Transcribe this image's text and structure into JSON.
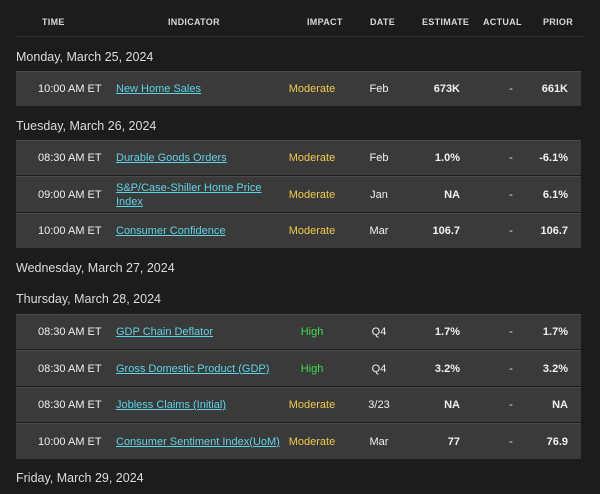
{
  "header": {
    "time": "TIME",
    "indicator": "INDICATOR",
    "impact": "IMPACT",
    "date": "DATE",
    "estimate": "ESTIMATE",
    "actual": "ACTUAL",
    "prior": "PRIOR"
  },
  "days": [
    {
      "label": "Monday, March 25, 2024",
      "events": [
        {
          "time": "10:00 AM ET",
          "indicator": "New Home Sales",
          "impact": "Moderate",
          "date": "Feb",
          "estimate": "673K",
          "actual": "-",
          "prior": "661K"
        }
      ]
    },
    {
      "label": "Tuesday, March 26, 2024",
      "events": [
        {
          "time": "08:30 AM ET",
          "indicator": "Durable Goods Orders",
          "impact": "Moderate",
          "date": "Feb",
          "estimate": "1.0%",
          "actual": "-",
          "prior": "-6.1%"
        },
        {
          "time": "09:00 AM ET",
          "indicator": "S&P/Case-Shiller Home Price Index",
          "impact": "Moderate",
          "date": "Jan",
          "estimate": "NA",
          "actual": "-",
          "prior": "6.1%"
        },
        {
          "time": "10:00 AM ET",
          "indicator": "Consumer Confidence",
          "impact": "Moderate",
          "date": "Mar",
          "estimate": "106.7",
          "actual": "-",
          "prior": "106.7"
        }
      ]
    },
    {
      "label": "Wednesday, March 27, 2024",
      "events": []
    },
    {
      "label": "Thursday, March 28, 2024",
      "events": [
        {
          "time": "08:30 AM ET",
          "indicator": "GDP Chain Deflator",
          "impact": "High",
          "date": "Q4",
          "estimate": "1.7%",
          "actual": "-",
          "prior": "1.7%"
        },
        {
          "time": "08:30 AM ET",
          "indicator": "Gross Domestic Product (GDP)",
          "impact": "High",
          "date": "Q4",
          "estimate": "3.2%",
          "actual": "-",
          "prior": "3.2%"
        },
        {
          "time": "08:30 AM ET",
          "indicator": "Jobless Claims (Initial)",
          "impact": "Moderate",
          "date": "3/23",
          "estimate": "NA",
          "actual": "-",
          "prior": "NA"
        },
        {
          "time": "10:00 AM ET",
          "indicator": "Consumer Sentiment Index(UoM)",
          "impact": "Moderate",
          "date": "Mar",
          "estimate": "77",
          "actual": "-",
          "prior": "76.9"
        }
      ]
    },
    {
      "label": "Friday, March 29, 2024",
      "events": []
    }
  ],
  "colors": {
    "moderate": "#f2c94c",
    "high": "#3ddc4a",
    "link": "#5fd3e6"
  }
}
